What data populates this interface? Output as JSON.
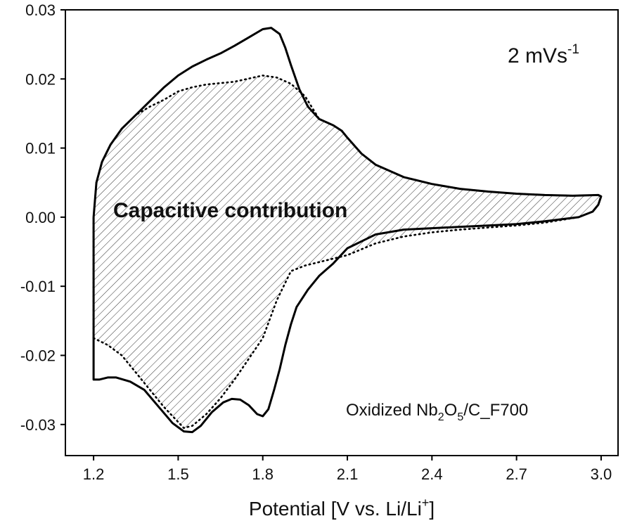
{
  "chart_data": {
    "type": "line",
    "title": "",
    "xlabel": {
      "main": "Potential [V vs. Li/Li",
      "sup": "+",
      "end": "]"
    },
    "ylabel": "",
    "xlim": [
      1.1,
      3.06
    ],
    "ylim": [
      -0.0345,
      0.03
    ],
    "x_ticks": [
      1.2,
      1.5,
      1.8,
      2.1,
      2.4,
      2.7,
      3.0
    ],
    "x_tick_labels": [
      "1.2",
      "1.5",
      "1.8",
      "2.1",
      "2.4",
      "2.7",
      "3.0"
    ],
    "y_ticks": [
      0.03,
      0.02,
      0.01,
      0.0,
      -0.01,
      -0.02,
      -0.03
    ],
    "y_tick_labels": [
      "0.03",
      "0.02",
      "0.01",
      "0.00",
      "-0.01",
      "-0.02",
      "-0.03"
    ],
    "grid": false,
    "legend": "none",
    "annotations": {
      "rate": {
        "main": "2 mVs",
        "sup": "-1"
      },
      "region": "Capacitive contribution",
      "sample": {
        "parts": [
          "Oxidized Nb",
          "2",
          "O",
          "5",
          "/C_F700"
        ]
      }
    },
    "series": [
      {
        "style": "solid",
        "color": "#000000",
        "points": [
          [
            1.2,
            -0.0235
          ],
          [
            1.2,
            0.0
          ],
          [
            1.21,
            0.005
          ],
          [
            1.23,
            0.008
          ],
          [
            1.26,
            0.0105
          ],
          [
            1.3,
            0.0128
          ],
          [
            1.35,
            0.0148
          ],
          [
            1.4,
            0.0168
          ],
          [
            1.45,
            0.0188
          ],
          [
            1.5,
            0.0205
          ],
          [
            1.55,
            0.0218
          ],
          [
            1.6,
            0.0228
          ],
          [
            1.65,
            0.0237
          ],
          [
            1.7,
            0.0248
          ],
          [
            1.75,
            0.026
          ],
          [
            1.8,
            0.0272
          ],
          [
            1.83,
            0.0274
          ],
          [
            1.86,
            0.0265
          ],
          [
            1.88,
            0.0245
          ],
          [
            1.9,
            0.022
          ],
          [
            1.93,
            0.0185
          ],
          [
            1.96,
            0.016
          ],
          [
            2.0,
            0.0142
          ],
          [
            2.05,
            0.0133
          ],
          [
            2.08,
            0.0125
          ],
          [
            2.1,
            0.0115
          ],
          [
            2.15,
            0.0092
          ],
          [
            2.2,
            0.0076
          ],
          [
            2.3,
            0.0058
          ],
          [
            2.4,
            0.0048
          ],
          [
            2.5,
            0.0041
          ],
          [
            2.6,
            0.0037
          ],
          [
            2.7,
            0.0034
          ],
          [
            2.8,
            0.0032
          ],
          [
            2.9,
            0.0031
          ],
          [
            2.99,
            0.0032
          ],
          [
            3.0,
            0.003
          ],
          [
            2.99,
            0.0018
          ],
          [
            2.97,
            0.0008
          ],
          [
            2.92,
            0.0
          ],
          [
            2.8,
            -0.0006
          ],
          [
            2.7,
            -0.001
          ],
          [
            2.6,
            -0.0012
          ],
          [
            2.5,
            -0.0014
          ],
          [
            2.4,
            -0.0016
          ],
          [
            2.3,
            -0.0018
          ],
          [
            2.2,
            -0.0025
          ],
          [
            2.15,
            -0.0035
          ],
          [
            2.1,
            -0.0045
          ],
          [
            2.05,
            -0.0067
          ],
          [
            2.0,
            -0.0085
          ],
          [
            1.96,
            -0.0105
          ],
          [
            1.92,
            -0.013
          ],
          [
            1.9,
            -0.0155
          ],
          [
            1.88,
            -0.0185
          ],
          [
            1.86,
            -0.022
          ],
          [
            1.84,
            -0.025
          ],
          [
            1.82,
            -0.0278
          ],
          [
            1.8,
            -0.0288
          ],
          [
            1.78,
            -0.0285
          ],
          [
            1.75,
            -0.0272
          ],
          [
            1.72,
            -0.0264
          ],
          [
            1.69,
            -0.0263
          ],
          [
            1.66,
            -0.0268
          ],
          [
            1.62,
            -0.0282
          ],
          [
            1.58,
            -0.0302
          ],
          [
            1.55,
            -0.0311
          ],
          [
            1.52,
            -0.031
          ],
          [
            1.48,
            -0.0298
          ],
          [
            1.43,
            -0.0274
          ],
          [
            1.38,
            -0.025
          ],
          [
            1.33,
            -0.0238
          ],
          [
            1.28,
            -0.0232
          ],
          [
            1.25,
            -0.0232
          ],
          [
            1.22,
            -0.0235
          ],
          [
            1.2,
            -0.0235
          ]
        ]
      },
      {
        "style": "dotted",
        "color": "#000000",
        "points": [
          [
            1.2,
            -0.0175
          ],
          [
            1.2,
            0.0
          ],
          [
            1.21,
            0.005
          ],
          [
            1.23,
            0.008
          ],
          [
            1.26,
            0.0105
          ],
          [
            1.3,
            0.0128
          ],
          [
            1.35,
            0.0148
          ],
          [
            1.4,
            0.016
          ],
          [
            1.45,
            0.017
          ],
          [
            1.5,
            0.0182
          ],
          [
            1.55,
            0.0188
          ],
          [
            1.6,
            0.0192
          ],
          [
            1.7,
            0.0196
          ],
          [
            1.8,
            0.0205
          ],
          [
            1.85,
            0.0202
          ],
          [
            1.9,
            0.0193
          ],
          [
            1.95,
            0.0175
          ],
          [
            2.0,
            0.0142
          ],
          [
            2.05,
            0.0133
          ],
          [
            2.08,
            0.0125
          ],
          [
            2.1,
            0.0115
          ],
          [
            2.15,
            0.0092
          ],
          [
            2.2,
            0.0076
          ],
          [
            2.3,
            0.0058
          ],
          [
            2.4,
            0.0048
          ],
          [
            2.5,
            0.0041
          ],
          [
            2.6,
            0.0037
          ],
          [
            2.7,
            0.0034
          ],
          [
            2.8,
            0.0032
          ],
          [
            2.9,
            0.0031
          ],
          [
            2.99,
            0.0032
          ],
          [
            3.0,
            0.003
          ],
          [
            2.99,
            0.0018
          ],
          [
            2.97,
            0.0008
          ],
          [
            2.92,
            0.0
          ],
          [
            2.8,
            -0.0008
          ],
          [
            2.7,
            -0.0012
          ],
          [
            2.6,
            -0.0015
          ],
          [
            2.5,
            -0.0018
          ],
          [
            2.4,
            -0.0022
          ],
          [
            2.3,
            -0.0028
          ],
          [
            2.2,
            -0.0038
          ],
          [
            2.1,
            -0.0055
          ],
          [
            2.0,
            -0.0065
          ],
          [
            1.95,
            -0.007
          ],
          [
            1.9,
            -0.0078
          ],
          [
            1.85,
            -0.012
          ],
          [
            1.8,
            -0.0175
          ],
          [
            1.75,
            -0.0205
          ],
          [
            1.7,
            -0.0235
          ],
          [
            1.65,
            -0.0262
          ],
          [
            1.6,
            -0.0285
          ],
          [
            1.55,
            -0.0302
          ],
          [
            1.52,
            -0.0305
          ],
          [
            1.45,
            -0.0275
          ],
          [
            1.4,
            -0.025
          ],
          [
            1.35,
            -0.0225
          ],
          [
            1.3,
            -0.02
          ],
          [
            1.25,
            -0.0185
          ],
          [
            1.2,
            -0.0175
          ]
        ]
      }
    ]
  }
}
